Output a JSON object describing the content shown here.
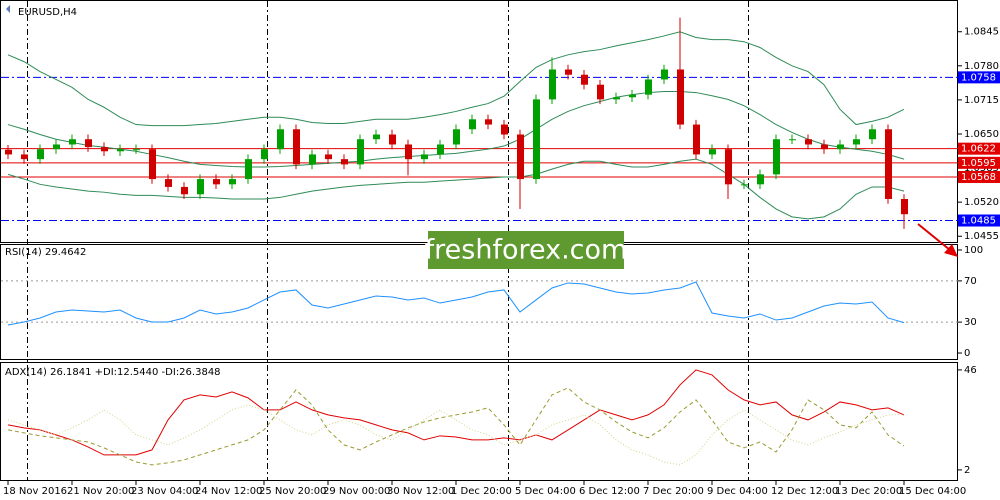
{
  "chart_data": [
    {
      "type": "candlestick",
      "title": "EURUSD,H4",
      "open": [
        1.062,
        1.0611,
        1.0602,
        1.0621,
        1.063,
        1.064,
        1.0625,
        1.0617,
        1.0621,
        1.0621,
        1.0564,
        1.0549,
        1.0535,
        1.0564,
        1.0554,
        1.0564,
        1.0602,
        1.0621,
        1.0659,
        1.0592,
        1.0611,
        1.0602,
        1.0592,
        1.064,
        1.0649,
        1.063,
        1.0602,
        1.0611,
        1.063,
        1.0659,
        1.0678,
        1.0668,
        1.0649,
        1.0564,
        1.0716,
        1.0773,
        1.0763,
        1.0744,
        1.0716,
        1.072,
        1.0725,
        1.0754,
        1.0773,
        1.0668,
        1.0611,
        1.0621,
        1.0554,
        1.0554,
        1.0573,
        1.064,
        1.064,
        1.063,
        1.0621,
        1.063,
        1.064,
        1.0659,
        1.0526
      ],
      "high": [
        1.0629,
        1.062,
        1.063,
        1.0639,
        1.0649,
        1.0649,
        1.0634,
        1.063,
        1.063,
        1.063,
        1.0573,
        1.0558,
        1.0573,
        1.0573,
        1.0573,
        1.0611,
        1.063,
        1.0668,
        1.0668,
        1.062,
        1.062,
        1.0611,
        1.0649,
        1.0658,
        1.0658,
        1.0639,
        1.062,
        1.0639,
        1.0668,
        1.0687,
        1.0687,
        1.0677,
        1.0658,
        1.0725,
        1.0796,
        1.0782,
        1.0772,
        1.0753,
        1.0729,
        1.0734,
        1.0763,
        1.0782,
        1.0872,
        1.0677,
        1.063,
        1.063,
        1.0563,
        1.0582,
        1.0649,
        1.0649,
        1.0649,
        1.0639,
        1.0639,
        1.0649,
        1.0668,
        1.0668,
        1.0535
      ],
      "low": [
        1.0602,
        1.0593,
        1.0593,
        1.0612,
        1.0621,
        1.0616,
        1.0608,
        1.0608,
        1.0612,
        1.0555,
        1.054,
        1.0526,
        1.0526,
        1.0545,
        1.0545,
        1.0555,
        1.0593,
        1.0612,
        1.0583,
        1.0583,
        1.0593,
        1.0583,
        1.0583,
        1.0631,
        1.0621,
        1.0571,
        1.0593,
        1.0602,
        1.0621,
        1.065,
        1.0659,
        1.064,
        1.0507,
        1.0555,
        1.0707,
        1.0754,
        1.0735,
        1.0707,
        1.0707,
        1.0711,
        1.0716,
        1.0745,
        1.0659,
        1.0602,
        1.0602,
        1.0526,
        1.0545,
        1.0545,
        1.0564,
        1.0631,
        1.0621,
        1.0612,
        1.0612,
        1.0621,
        1.0631,
        1.0517,
        1.0469
      ],
      "close": [
        1.0611,
        1.0602,
        1.0621,
        1.063,
        1.064,
        1.0625,
        1.0617,
        1.0621,
        1.0621,
        1.0564,
        1.0549,
        1.0535,
        1.0564,
        1.0554,
        1.0564,
        1.0602,
        1.0621,
        1.0659,
        1.0592,
        1.0611,
        1.0602,
        1.0592,
        1.064,
        1.0649,
        1.063,
        1.0602,
        1.0611,
        1.063,
        1.0659,
        1.0678,
        1.0668,
        1.0649,
        1.0564,
        1.0716,
        1.0773,
        1.0763,
        1.0744,
        1.0716,
        1.072,
        1.0725,
        1.0754,
        1.0773,
        1.0668,
        1.0611,
        1.0621,
        1.0554,
        1.0554,
        1.0573,
        1.064,
        1.064,
        1.063,
        1.0621,
        1.063,
        1.064,
        1.0659,
        1.0526,
        1.0497
      ],
      "up_color": "#00a000",
      "down_color": "#d00000",
      "bands": {
        "color": "#2e8b57",
        "upper": [
          1.0801,
          1.0788,
          1.0769,
          1.0754,
          1.0739,
          1.0716,
          1.0701,
          1.0682,
          1.0668,
          1.0666,
          1.0666,
          1.0666,
          1.0668,
          1.067,
          1.0674,
          1.0678,
          1.0682,
          1.0682,
          1.0678,
          1.0672,
          1.067,
          1.067,
          1.0674,
          1.0678,
          1.0678,
          1.0678,
          1.0682,
          1.0687,
          1.0693,
          1.0701,
          1.0708,
          1.0722,
          1.075,
          1.0777,
          1.0792,
          1.0801,
          1.0807,
          1.0811,
          1.0818,
          1.0824,
          1.083,
          1.0837,
          1.0845,
          1.0834,
          1.083,
          1.083,
          1.0826,
          1.0815,
          1.0796,
          1.078,
          1.0769,
          1.0744,
          1.0697,
          1.0668,
          1.0674,
          1.0682,
          1.0697
        ],
        "middle": [
          1.0668,
          1.0659,
          1.0649,
          1.064,
          1.0634,
          1.0628,
          1.0625,
          1.0621,
          1.0617,
          1.0611,
          1.0605,
          1.0598,
          1.0592,
          1.059,
          1.0588,
          1.0587,
          1.0587,
          1.0588,
          1.059,
          1.0592,
          1.0594,
          1.0596,
          1.0598,
          1.0602,
          1.0605,
          1.0607,
          1.0609,
          1.0611,
          1.0613,
          1.0617,
          1.0621,
          1.0627,
          1.064,
          1.0659,
          1.0678,
          1.0693,
          1.0704,
          1.0712,
          1.072,
          1.0725,
          1.0729,
          1.0731,
          1.0731,
          1.0729,
          1.0723,
          1.0716,
          1.0704,
          1.0687,
          1.0668,
          1.0653,
          1.064,
          1.063,
          1.0625,
          1.0621,
          1.0617,
          1.0611,
          1.0602
        ],
        "lower": [
          1.0573,
          1.0564,
          1.0554,
          1.0549,
          1.0545,
          1.0541,
          1.0539,
          1.0535,
          1.0533,
          1.0533,
          1.0531,
          1.0529,
          1.0529,
          1.0528,
          1.0526,
          1.0526,
          1.0526,
          1.0529,
          1.0535,
          1.0541,
          1.0545,
          1.0549,
          1.0552,
          1.0554,
          1.0556,
          1.0558,
          1.0558,
          1.056,
          1.0562,
          1.0564,
          1.0566,
          1.0568,
          1.0568,
          1.0573,
          1.0583,
          1.0592,
          1.0598,
          1.0598,
          1.0592,
          1.0587,
          1.0587,
          1.0592,
          1.0598,
          1.0602,
          1.0592,
          1.0573,
          1.0554,
          1.0529,
          1.0507,
          1.0492,
          1.0488,
          1.0492,
          1.0507,
          1.0535,
          1.0549,
          1.0549,
          1.0541
        ]
      },
      "ylim": [
        1.0444,
        1.0896
      ],
      "yticks": [
        1.0845,
        {
          "value": 1.078,
          "label": "1.0780"
        },
        1.0715,
        {
          "value": 1.065,
          "label": "1.0650"
        },
        1.0585,
        {
          "value": 1.052,
          "label": "1.0520"
        },
        1.0455
      ],
      "hlines": [
        {
          "value": 1.0758,
          "color": "#0000ff",
          "style": "dash-dot"
        },
        {
          "value": 1.0622,
          "color": "#e00000",
          "style": "solid"
        },
        {
          "value": 1.0595,
          "color": "#e00000",
          "style": "solid"
        },
        {
          "value": 1.0568,
          "color": "#e00000",
          "style": "solid"
        },
        {
          "value": 1.0485,
          "color": "#0000ff",
          "style": "dash-dot"
        }
      ]
    },
    {
      "type": "line",
      "title": "RSI(14) 29.4642",
      "series": [
        {
          "color": "#1e90ff",
          "style": "solid",
          "values": [
            27.2,
            30.1,
            34.0,
            39.8,
            41.7,
            40.8,
            39.8,
            41.7,
            34.0,
            30.1,
            30.1,
            34.0,
            41.7,
            37.9,
            39.8,
            43.7,
            51.5,
            59.2,
            61.2,
            46.6,
            43.7,
            47.6,
            51.5,
            55.3,
            54.4,
            51.5,
            53.4,
            48.5,
            51.5,
            54.4,
            59.2,
            61.2,
            39.8,
            51.5,
            63.1,
            68.0,
            67.0,
            63.1,
            59.2,
            57.3,
            58.3,
            61.2,
            63.1,
            68.9,
            38.8,
            35.9,
            34.0,
            37.9,
            32.0,
            34.0,
            39.8,
            45.6,
            48.5,
            47.6,
            49.5,
            34.0,
            29.5
          ]
        }
      ],
      "ylim": [
        -5.8,
        105.8
      ],
      "yticks": [
        100,
        70,
        30,
        0
      ],
      "levels": [
        70,
        30
      ]
    },
    {
      "type": "line",
      "title": "ADX(14) 26.1841 +DI:12.5440 -DI:26.3848",
      "series": [
        {
          "color": "#e00000",
          "style": "solid",
          "values": [
            21.8,
            20.5,
            19.6,
            17.4,
            15.2,
            12.1,
            8.6,
            8.6,
            8.6,
            10.8,
            24.0,
            32.8,
            35.0,
            34.1,
            36.3,
            33.7,
            28.4,
            28.4,
            31.9,
            28.4,
            26.2,
            24.9,
            24.0,
            21.8,
            19.6,
            18.3,
            15.2,
            17.0,
            16.5,
            15.2,
            15.2,
            16.1,
            15.2,
            17.4,
            15.2,
            19.6,
            24.0,
            28.4,
            26.2,
            24.0,
            26.2,
            30.6,
            39.4,
            46.0,
            43.8,
            37.2,
            32.8,
            30.6,
            31.9,
            26.2,
            24.0,
            27.5,
            31.9,
            30.6,
            28.4,
            29.3,
            26.2
          ]
        },
        {
          "color": "#9a9a30",
          "style": "dashed",
          "values": [
            19.6,
            18.3,
            17.0,
            16.1,
            15.2,
            14.3,
            11.7,
            8.6,
            5.5,
            4.2,
            5.1,
            6.4,
            8.6,
            10.8,
            13.0,
            15.2,
            19.6,
            28.4,
            37.2,
            30.6,
            19.6,
            13.0,
            10.8,
            14.3,
            17.4,
            20.5,
            23.1,
            24.9,
            26.2,
            27.5,
            29.3,
            21.8,
            13.0,
            24.0,
            35.0,
            38.1,
            31.9,
            28.4,
            23.1,
            18.7,
            16.1,
            20.5,
            27.5,
            32.8,
            24.0,
            14.3,
            11.7,
            14.3,
            9.9,
            19.6,
            32.8,
            28.4,
            21.8,
            20.5,
            27.5,
            17.4,
            12.5
          ]
        },
        {
          "color": "#d4d48a",
          "style": "dotted",
          "values": [
            24.0,
            21.8,
            19.6,
            17.4,
            20.5,
            24.0,
            28.4,
            24.0,
            17.4,
            15.2,
            13.0,
            16.1,
            19.6,
            24.0,
            28.4,
            30.6,
            28.4,
            24.0,
            19.6,
            17.4,
            21.8,
            24.0,
            21.8,
            17.4,
            15.2,
            19.6,
            24.0,
            28.4,
            24.0,
            19.6,
            17.4,
            13.0,
            15.2,
            17.4,
            21.8,
            24.0,
            26.2,
            21.8,
            15.2,
            10.8,
            8.6,
            5.5,
            4.2,
            8.6,
            17.4,
            24.0,
            28.4,
            24.0,
            19.6,
            15.2,
            13.0,
            16.1,
            18.7,
            21.8,
            24.0,
            26.2,
            26.4
          ]
        }
      ],
      "ylim": [
        -2,
        48.6
      ],
      "yticks": [
        46,
        2
      ],
      "categories": [
        "18 Nov 2016",
        null,
        null,
        null,
        "21 Nov 20:00",
        null,
        null,
        null,
        "23 Nov 04:00",
        null,
        null,
        null,
        "24 Nov 12:00",
        null,
        null,
        null,
        "25 Nov 20:00",
        null,
        null,
        null,
        "29 Nov 00:00",
        null,
        null,
        null,
        "30 Nov 12:00",
        null,
        null,
        null,
        "1 Dec 20:00",
        null,
        null,
        null,
        "5 Dec 04:00",
        null,
        null,
        null,
        "6 Dec 12:00",
        null,
        null,
        null,
        "7 Dec 20:00",
        null,
        null,
        null,
        "9 Dec 04:00",
        null,
        null,
        null,
        "12 Dec 12:00",
        null,
        null,
        null,
        "13 Dec 20:00",
        null,
        null,
        null,
        "15 Dec 04:00"
      ]
    }
  ],
  "watermark": "freshforex.com"
}
